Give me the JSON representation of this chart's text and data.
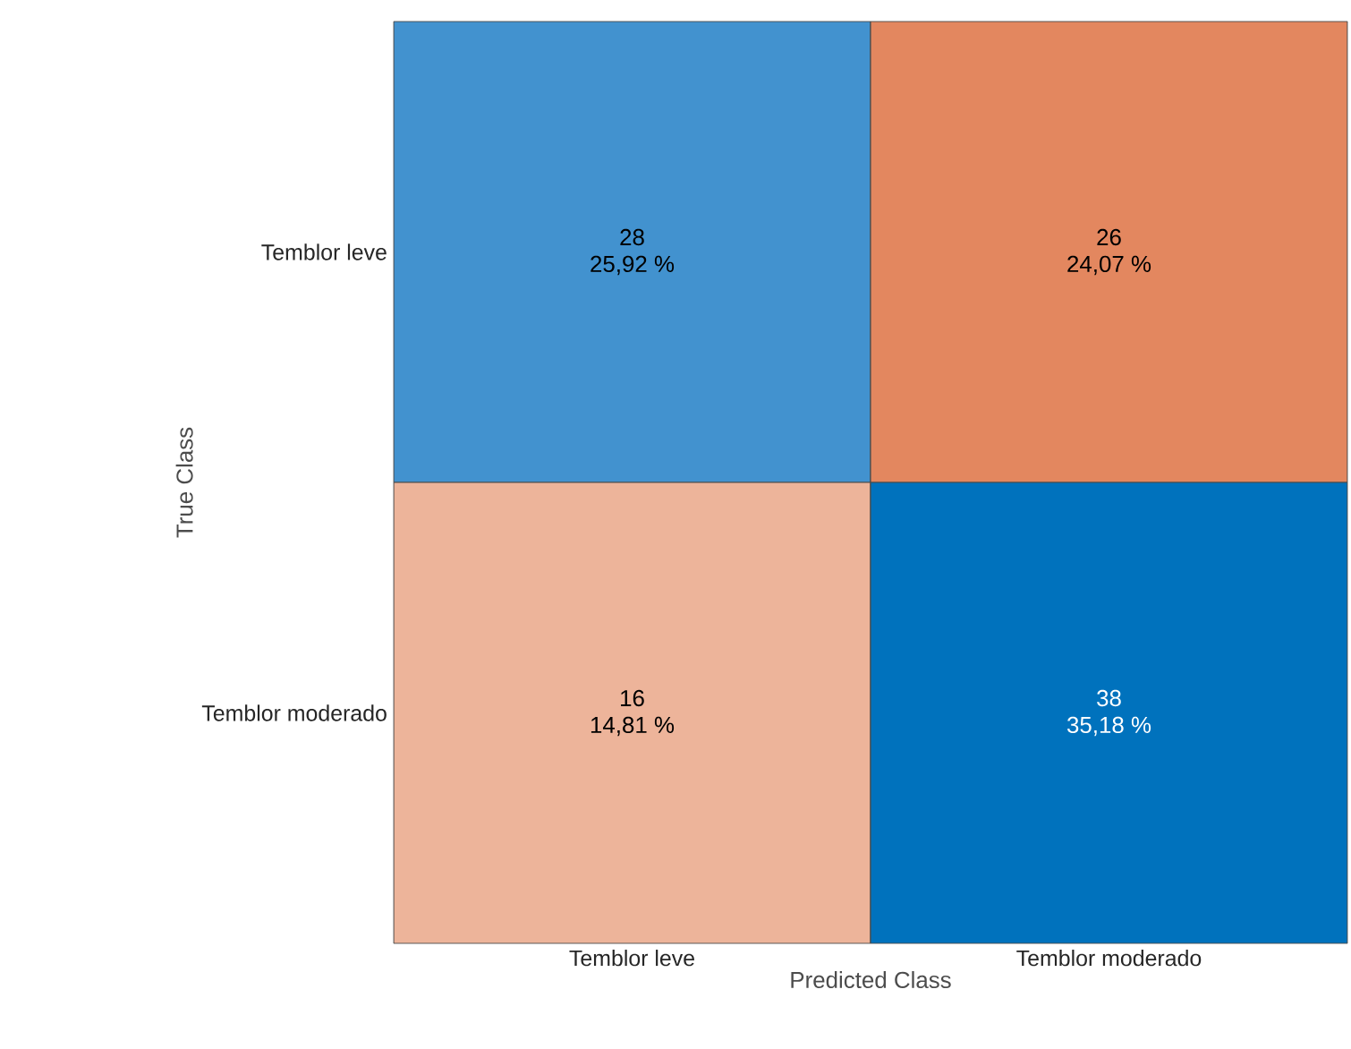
{
  "chart_data": {
    "type": "heatmap",
    "xlabel": "Predicted Class",
    "ylabel": "True Class",
    "categories": [
      "Temblor leve",
      "Temblor moderado"
    ],
    "y_categories": [
      "Temblor leve",
      "Temblor moderado"
    ],
    "cells": [
      [
        28,
        26
      ],
      [
        16,
        38
      ]
    ],
    "annotations": [
      "25,92 %",
      "24,07 %",
      "14,81 %",
      "35,18 %"
    ],
    "colors": [
      [
        "#4292cf",
        "#e3875f"
      ],
      [
        "#edb49a",
        "#0072bd"
      ]
    ],
    "data_labels": true
  }
}
